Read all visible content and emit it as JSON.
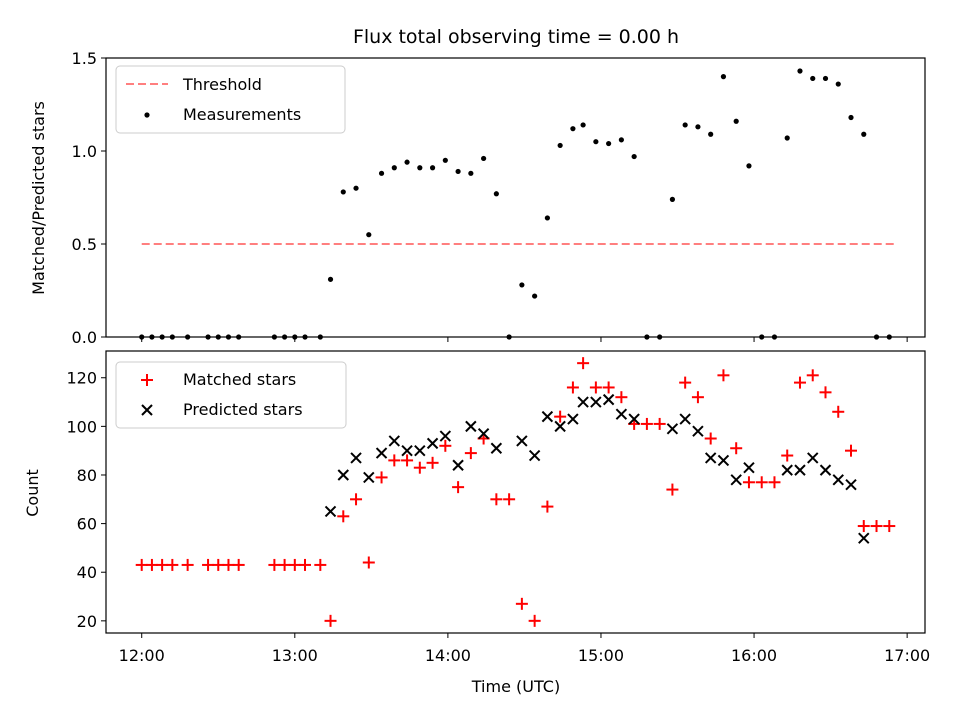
{
  "chart_data": [
    {
      "type": "scatter",
      "title": "Flux total observing time = 0.00 h",
      "xlabel": "",
      "ylabel": "Matched/Predicted stars",
      "ylim": [
        0,
        1.5
      ],
      "yticks": [
        "0.0",
        "0.5",
        "1.0",
        "1.5"
      ],
      "x_shared": true,
      "legend_position": "upper-left",
      "threshold": {
        "name": "Threshold",
        "value": 0.5,
        "x_range": [
          "12:00",
          "16:55"
        ],
        "color": "#ff7f7f"
      },
      "series": [
        {
          "name": "Measurements",
          "color": "#000000",
          "points": [
            [
              "12:00",
              0
            ],
            [
              "12:04",
              0
            ],
            [
              "12:08",
              0
            ],
            [
              "12:12",
              0
            ],
            [
              "12:18",
              0
            ],
            [
              "12:26",
              0
            ],
            [
              "12:30",
              0
            ],
            [
              "12:34",
              0
            ],
            [
              "12:38",
              0
            ],
            [
              "12:52",
              0
            ],
            [
              "12:56",
              0
            ],
            [
              "13:00",
              0
            ],
            [
              "13:04",
              0
            ],
            [
              "13:10",
              0
            ],
            [
              "13:14",
              0.31
            ],
            [
              "13:19",
              0.78
            ],
            [
              "13:24",
              0.8
            ],
            [
              "13:29",
              0.55
            ],
            [
              "13:34",
              0.88
            ],
            [
              "13:39",
              0.91
            ],
            [
              "13:44",
              0.94
            ],
            [
              "13:49",
              0.91
            ],
            [
              "13:54",
              0.91
            ],
            [
              "13:59",
              0.95
            ],
            [
              "14:04",
              0.89
            ],
            [
              "14:09",
              0.88
            ],
            [
              "14:14",
              0.96
            ],
            [
              "14:19",
              0.77
            ],
            [
              "14:24",
              0
            ],
            [
              "14:29",
              0.28
            ],
            [
              "14:34",
              0.22
            ],
            [
              "14:39",
              0.64
            ],
            [
              "14:44",
              1.03
            ],
            [
              "14:49",
              1.12
            ],
            [
              "14:53",
              1.14
            ],
            [
              "14:58",
              1.05
            ],
            [
              "15:03",
              1.04
            ],
            [
              "15:08",
              1.06
            ],
            [
              "15:13",
              0.97
            ],
            [
              "15:18",
              0
            ],
            [
              "15:23",
              0
            ],
            [
              "15:28",
              0.74
            ],
            [
              "15:33",
              1.14
            ],
            [
              "15:38",
              1.13
            ],
            [
              "15:43",
              1.09
            ],
            [
              "15:48",
              1.4
            ],
            [
              "15:53",
              1.16
            ],
            [
              "15:58",
              0.92
            ],
            [
              "16:03",
              0
            ],
            [
              "16:08",
              0
            ],
            [
              "16:13",
              1.07
            ],
            [
              "16:18",
              1.43
            ],
            [
              "16:23",
              1.39
            ],
            [
              "16:28",
              1.39
            ],
            [
              "16:33",
              1.36
            ],
            [
              "16:38",
              1.18
            ],
            [
              "16:43",
              1.09
            ],
            [
              "16:48",
              0
            ],
            [
              "16:53",
              0
            ]
          ]
        }
      ]
    },
    {
      "type": "scatter",
      "title": "",
      "xlabel": "Time (UTC)",
      "ylabel": "Count",
      "ylim": [
        15,
        131
      ],
      "yticks": [
        "20",
        "40",
        "60",
        "80",
        "100",
        "120"
      ],
      "xlim": [
        "11:46",
        "17:07"
      ],
      "xticks": [
        "12:00",
        "13:00",
        "14:00",
        "15:00",
        "16:00",
        "17:00"
      ],
      "legend_position": "upper-left",
      "series": [
        {
          "name": "Matched stars",
          "marker": "+",
          "color": "#ff0000",
          "points": [
            [
              "12:00",
              43
            ],
            [
              "12:04",
              43
            ],
            [
              "12:08",
              43
            ],
            [
              "12:12",
              43
            ],
            [
              "12:18",
              43
            ],
            [
              "12:26",
              43
            ],
            [
              "12:30",
              43
            ],
            [
              "12:34",
              43
            ],
            [
              "12:38",
              43
            ],
            [
              "12:52",
              43
            ],
            [
              "12:56",
              43
            ],
            [
              "13:00",
              43
            ],
            [
              "13:04",
              43
            ],
            [
              "13:10",
              43
            ],
            [
              "13:14",
              20
            ],
            [
              "13:19",
              63
            ],
            [
              "13:24",
              70
            ],
            [
              "13:29",
              44
            ],
            [
              "13:34",
              79
            ],
            [
              "13:39",
              86
            ],
            [
              "13:44",
              86
            ],
            [
              "13:49",
              83
            ],
            [
              "13:54",
              85
            ],
            [
              "13:59",
              92
            ],
            [
              "14:04",
              75
            ],
            [
              "14:09",
              89
            ],
            [
              "14:14",
              95
            ],
            [
              "14:19",
              70
            ],
            [
              "14:24",
              70
            ],
            [
              "14:29",
              27
            ],
            [
              "14:34",
              20
            ],
            [
              "14:39",
              67
            ],
            [
              "14:44",
              104
            ],
            [
              "14:49",
              116
            ],
            [
              "14:53",
              126
            ],
            [
              "14:58",
              116
            ],
            [
              "15:03",
              116
            ],
            [
              "15:08",
              112
            ],
            [
              "15:13",
              101
            ],
            [
              "15:18",
              101
            ],
            [
              "15:23",
              101
            ],
            [
              "15:28",
              74
            ],
            [
              "15:33",
              118
            ],
            [
              "15:38",
              112
            ],
            [
              "15:43",
              95
            ],
            [
              "15:48",
              121
            ],
            [
              "15:53",
              91
            ],
            [
              "15:58",
              77
            ],
            [
              "16:03",
              77
            ],
            [
              "16:08",
              77
            ],
            [
              "16:13",
              88
            ],
            [
              "16:18",
              118
            ],
            [
              "16:23",
              121
            ],
            [
              "16:28",
              114
            ],
            [
              "16:33",
              106
            ],
            [
              "16:38",
              90
            ],
            [
              "16:43",
              59
            ],
            [
              "16:48",
              59
            ],
            [
              "16:53",
              59
            ]
          ]
        },
        {
          "name": "Predicted stars",
          "marker": "x",
          "color": "#000000",
          "points": [
            [
              "13:14",
              65
            ],
            [
              "13:19",
              80
            ],
            [
              "13:24",
              87
            ],
            [
              "13:29",
              79
            ],
            [
              "13:34",
              89
            ],
            [
              "13:39",
              94
            ],
            [
              "13:44",
              90
            ],
            [
              "13:49",
              90
            ],
            [
              "13:54",
              93
            ],
            [
              "13:59",
              96
            ],
            [
              "14:04",
              84
            ],
            [
              "14:09",
              100
            ],
            [
              "14:14",
              97
            ],
            [
              "14:19",
              91
            ],
            [
              "14:29",
              94
            ],
            [
              "14:34",
              88
            ],
            [
              "14:39",
              104
            ],
            [
              "14:44",
              100
            ],
            [
              "14:49",
              103
            ],
            [
              "14:53",
              110
            ],
            [
              "14:58",
              110
            ],
            [
              "15:03",
              111
            ],
            [
              "15:08",
              105
            ],
            [
              "15:13",
              103
            ],
            [
              "15:28",
              99
            ],
            [
              "15:33",
              103
            ],
            [
              "15:38",
              98
            ],
            [
              "15:43",
              87
            ],
            [
              "15:48",
              86
            ],
            [
              "15:53",
              78
            ],
            [
              "15:58",
              83
            ],
            [
              "16:13",
              82
            ],
            [
              "16:18",
              82
            ],
            [
              "16:23",
              87
            ],
            [
              "16:28",
              82
            ],
            [
              "16:33",
              78
            ],
            [
              "16:38",
              76
            ],
            [
              "16:43",
              54
            ]
          ]
        }
      ]
    }
  ]
}
